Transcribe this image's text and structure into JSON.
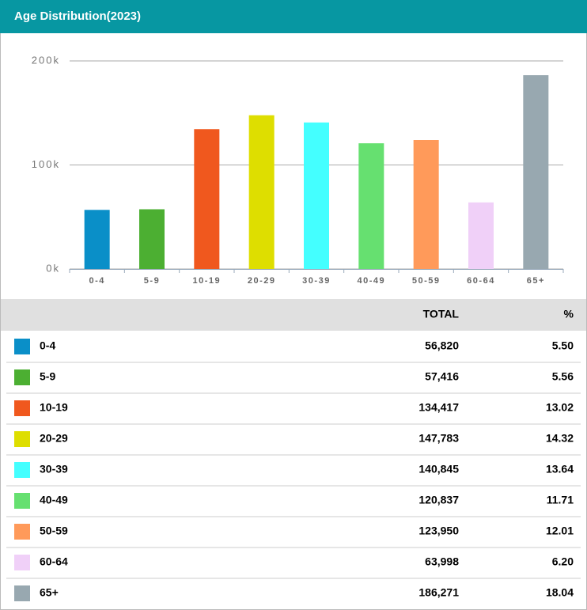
{
  "header": {
    "title": "Age Distribution(2023)"
  },
  "chart_data": {
    "type": "bar",
    "categories": [
      "0-4",
      "5-9",
      "10-19",
      "20-29",
      "30-39",
      "40-49",
      "50-59",
      "60-64",
      "65+"
    ],
    "values": [
      56820,
      57416,
      134417,
      147783,
      140845,
      120837,
      123950,
      63998,
      186271
    ],
    "value_labels": [
      "56,820",
      "57,416",
      "134,417",
      "147,783",
      "140,845",
      "120,837",
      "123,950",
      "63,998",
      "186,271"
    ],
    "colors": [
      "#0a8fc8",
      "#4caf32",
      "#f0581e",
      "#dede00",
      "#44ffff",
      "#66e070",
      "#ff9a5a",
      "#f0d0f8",
      "#98a8b0"
    ],
    "ylim": [
      0,
      200000
    ],
    "yticks": [
      {
        "value": 0,
        "label": "0k"
      },
      {
        "value": 100000,
        "label": "100k"
      },
      {
        "value": 200000,
        "label": "200k"
      }
    ],
    "grid": true
  },
  "table": {
    "headers": [
      "TOTAL",
      "%"
    ],
    "percent": [
      "5.50",
      "5.56",
      "13.02",
      "14.32",
      "13.64",
      "11.71",
      "12.01",
      "6.20",
      "18.04"
    ]
  }
}
